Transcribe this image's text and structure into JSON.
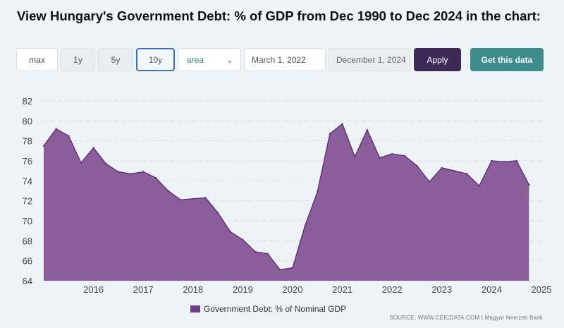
{
  "title": "View Hungary's Government Debt: % of GDP from Dec 1990 to Dec 2024 in the chart:",
  "controls": {
    "ranges": [
      "max",
      "1y",
      "5y",
      "10y"
    ],
    "active_range": "10y",
    "chart_type": "area",
    "start_date": "March 1, 2022",
    "end_date": "December 1, 2024",
    "apply_label": "Apply",
    "get_data_label": "Get this data"
  },
  "colors": {
    "area_fill": "#8b5e9b",
    "area_stroke": "#5e2f78",
    "legend_swatch": "#6e3d8f",
    "gridline": "#d9dde3"
  },
  "legend_label": "Government Debt: % of Nominal GDP",
  "source": "SOURCE: WWW.CEICDATA.COM | Magyar Nemzeti Bank",
  "chart_data": {
    "type": "area",
    "title": "",
    "xlabel": "",
    "ylabel": "",
    "ylim": [
      64,
      82
    ],
    "xlim": [
      2015.0,
      2025.0
    ],
    "yticks": [
      64,
      66,
      68,
      70,
      72,
      74,
      76,
      78,
      80,
      82
    ],
    "xticks": [
      2016,
      2017,
      2018,
      2019,
      2020,
      2021,
      2022,
      2023,
      2024,
      2025
    ],
    "grid": true,
    "legend_position": "bottom",
    "series": [
      {
        "name": "Government Debt: % of Nominal GDP",
        "x": [
          2015.0,
          2015.25,
          2015.5,
          2015.75,
          2016.0,
          2016.25,
          2016.5,
          2016.75,
          2017.0,
          2017.25,
          2017.5,
          2017.75,
          2018.0,
          2018.25,
          2018.5,
          2018.75,
          2019.0,
          2019.25,
          2019.5,
          2019.75,
          2020.0,
          2020.25,
          2020.5,
          2020.75,
          2021.0,
          2021.25,
          2021.5,
          2021.75,
          2022.0,
          2022.25,
          2022.5,
          2022.75,
          2023.0,
          2023.25,
          2023.5,
          2023.75,
          2024.0,
          2024.25,
          2024.5,
          2024.75
        ],
        "values": [
          77.5,
          79.2,
          78.5,
          75.8,
          77.3,
          75.7,
          74.9,
          74.7,
          74.9,
          74.3,
          73.0,
          72.1,
          72.2,
          72.3,
          70.8,
          68.9,
          68.1,
          66.9,
          66.7,
          65.1,
          65.3,
          69.5,
          72.9,
          78.7,
          79.7,
          76.4,
          79.1,
          76.3,
          76.7,
          76.5,
          75.5,
          73.9,
          75.3,
          75.0,
          74.7,
          73.5,
          76.0,
          75.9,
          76.0,
          73.6
        ]
      }
    ]
  }
}
